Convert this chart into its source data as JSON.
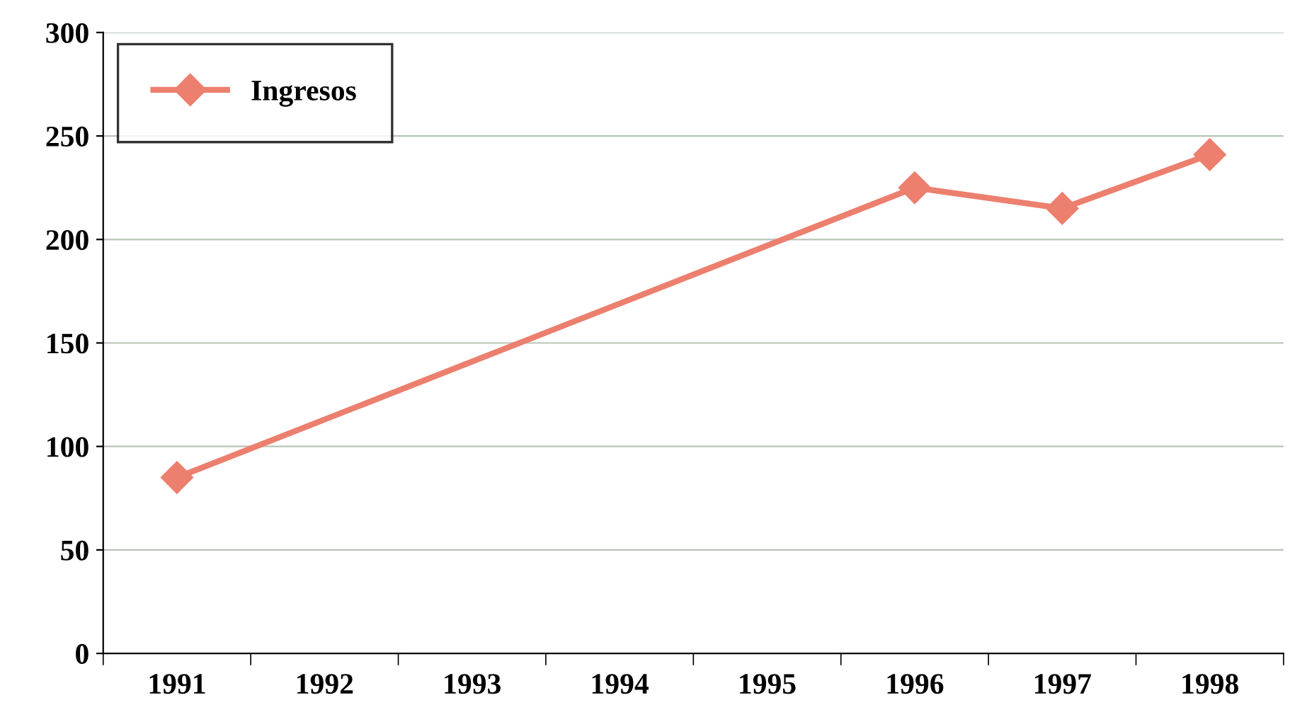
{
  "chart_data": {
    "type": "line",
    "categories": [
      "1991",
      "1992",
      "1993",
      "1994",
      "1995",
      "1996",
      "1997",
      "1998"
    ],
    "series": [
      {
        "name": "Ingresos",
        "color": "#ec7f6e",
        "values": [
          85,
          null,
          null,
          null,
          null,
          225,
          215,
          241
        ]
      }
    ],
    "ylim": [
      0,
      300
    ],
    "yticks": [
      0,
      50,
      100,
      150,
      200,
      250,
      300
    ],
    "grid": "y",
    "legend": "top left",
    "marker": "diamond",
    "line_style": "solid"
  }
}
